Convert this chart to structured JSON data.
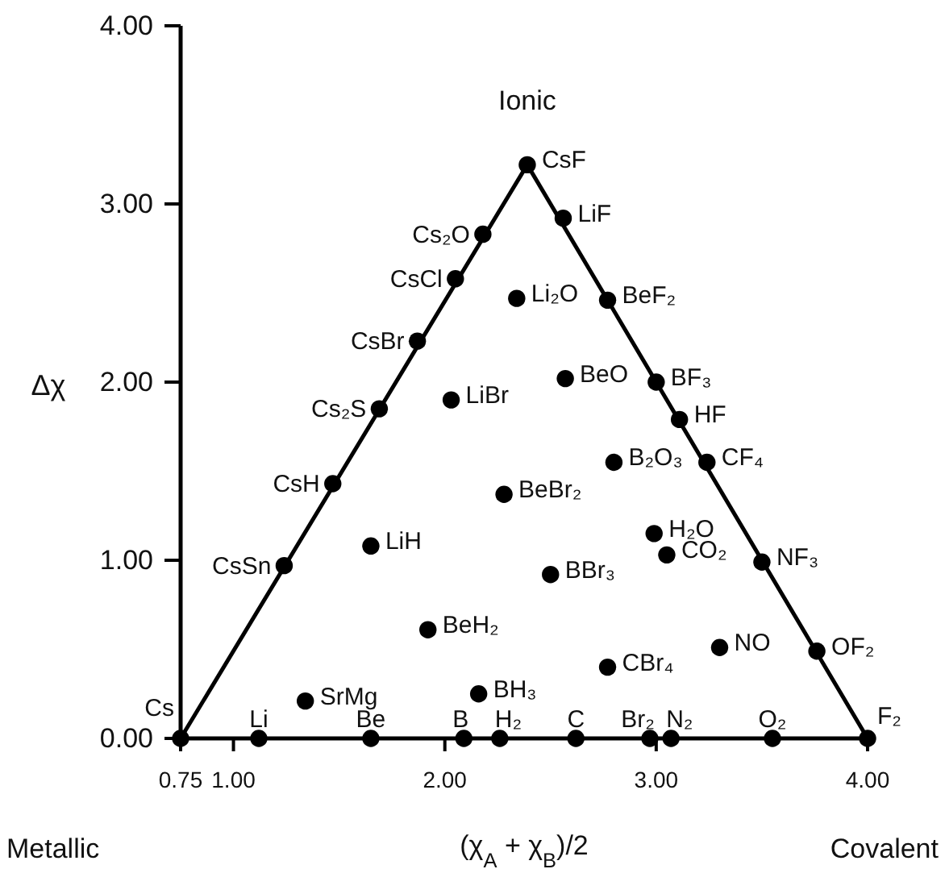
{
  "chart_data": {
    "type": "scatter",
    "xlabel": "(χ$_{A}$ + χ$_{B}$)/2",
    "ylabel": "Δχ",
    "xlim": [
      0.75,
      4
    ],
    "ylim": [
      0,
      4
    ],
    "xticks": [
      {
        "value": 0.75,
        "label": "0.75"
      },
      {
        "value": 1,
        "label": "1.00"
      },
      {
        "value": 2,
        "label": "2.00"
      },
      {
        "value": 3,
        "label": "3.00"
      },
      {
        "value": 4,
        "label": "4.00"
      }
    ],
    "yticks": [
      {
        "value": 0,
        "label": "0.00"
      },
      {
        "value": 1,
        "label": "1.00"
      },
      {
        "value": 2,
        "label": "2.00"
      },
      {
        "value": 3,
        "label": "3.00"
      },
      {
        "value": 4,
        "label": "4.00"
      }
    ],
    "grid": false,
    "series": [
      {
        "type": "line",
        "color": "#000000",
        "marker": "none",
        "line_style": "solid",
        "x": [
          0.75,
          2.39,
          4.0
        ],
        "values": [
          0,
          3.22,
          0
        ]
      },
      {
        "type": "scatter",
        "color": "#000000",
        "marker": "circle",
        "x": [
          0.75,
          1.12,
          1.65,
          2.09,
          2.26,
          2.62,
          2.97,
          3.07,
          3.55,
          4.0,
          2.39,
          2.18,
          2.05,
          1.87,
          1.69,
          1.47,
          1.24,
          2.56,
          2.77,
          3.0,
          3.11,
          3.24,
          3.5,
          3.76,
          2.34,
          2.03,
          2.57,
          2.8,
          2.28,
          2.99,
          3.05,
          2.5,
          1.65,
          1.92,
          1.34,
          2.16,
          2.77,
          3.3
        ],
        "values": [
          0,
          0,
          0,
          0,
          0,
          0,
          0,
          0,
          0,
          0,
          3.22,
          2.83,
          2.58,
          2.23,
          1.85,
          1.43,
          0.97,
          2.92,
          2.46,
          2.0,
          1.79,
          1.55,
          0.99,
          0.49,
          2.47,
          1.9,
          2.02,
          1.55,
          1.37,
          1.15,
          1.03,
          0.92,
          1.08,
          0.61,
          0.21,
          0.25,
          0.4,
          0.51
        ]
      }
    ],
    "annotations": [
      "Ionic",
      "Metallic",
      "Covalent",
      {
        "text": "Cs",
        "x": 0.75,
        "y": 0
      },
      {
        "text": "Li",
        "x": 1.12,
        "y": 0
      },
      {
        "text": "Be",
        "x": 1.65,
        "y": 0
      },
      {
        "text": "B",
        "x": 2.09,
        "y": 0
      },
      {
        "text": "H₂",
        "x": 2.26,
        "y": 0
      },
      {
        "text": "C",
        "x": 2.62,
        "y": 0
      },
      {
        "text": "Br₂",
        "x": 2.97,
        "y": 0
      },
      {
        "text": "N₂",
        "x": 3.07,
        "y": 0
      },
      {
        "text": "O₂",
        "x": 3.55,
        "y": 0
      },
      {
        "text": "F₂",
        "x": 4.0,
        "y": 0
      },
      {
        "text": "CsF",
        "x": 2.39,
        "y": 3.22
      },
      {
        "text": "Cs₂O",
        "x": 2.18,
        "y": 2.83
      },
      {
        "text": "CsCl",
        "x": 2.05,
        "y": 2.58
      },
      {
        "text": "CsBr",
        "x": 1.87,
        "y": 2.23
      },
      {
        "text": "Cs₂S",
        "x": 1.69,
        "y": 1.85
      },
      {
        "text": "CsH",
        "x": 1.47,
        "y": 1.43
      },
      {
        "text": "CsSn",
        "x": 1.24,
        "y": 0.97
      },
      {
        "text": "LiF",
        "x": 2.56,
        "y": 2.92
      },
      {
        "text": "BeF₂",
        "x": 2.77,
        "y": 2.46
      },
      {
        "text": "BF₃",
        "x": 3.0,
        "y": 2.0
      },
      {
        "text": "HF",
        "x": 3.11,
        "y": 1.79
      },
      {
        "text": "CF₄",
        "x": 3.24,
        "y": 1.55
      },
      {
        "text": "NF₃",
        "x": 3.5,
        "y": 0.99
      },
      {
        "text": "OF₂",
        "x": 3.76,
        "y": 0.49
      },
      {
        "text": "Li₂O",
        "x": 2.34,
        "y": 2.47
      },
      {
        "text": "LiBr",
        "x": 2.03,
        "y": 1.9
      },
      {
        "text": "BeO",
        "x": 2.57,
        "y": 2.02
      },
      {
        "text": "B₂O₃",
        "x": 2.8,
        "y": 1.55
      },
      {
        "text": "BeBr₂",
        "x": 2.28,
        "y": 1.37
      },
      {
        "text": "H₂O",
        "x": 2.99,
        "y": 1.15
      },
      {
        "text": "CO₂",
        "x": 3.05,
        "y": 1.03
      },
      {
        "text": "BBr₃",
        "x": 2.5,
        "y": 0.92
      },
      {
        "text": "LiH",
        "x": 1.65,
        "y": 1.08
      },
      {
        "text": "BeH₂",
        "x": 1.92,
        "y": 0.61
      },
      {
        "text": "SrMg",
        "x": 1.34,
        "y": 0.21
      },
      {
        "text": "BH₃",
        "x": 2.16,
        "y": 0.25
      },
      {
        "text": "CBr₄",
        "x": 2.77,
        "y": 0.4
      },
      {
        "text": "NO",
        "x": 3.3,
        "y": 0.51
      }
    ]
  }
}
